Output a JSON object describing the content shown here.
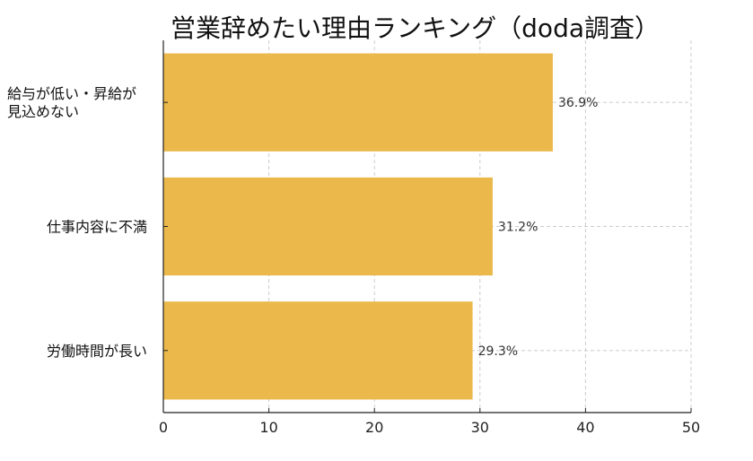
{
  "title": "営業辞めたい理由ランキング（doda調査）",
  "chart_data": {
    "type": "bar",
    "orientation": "horizontal",
    "title": "営業辞めたい理由ランキング（doda調査）",
    "xlabel": "",
    "ylabel": "",
    "categories": [
      [
        "給与が低い・昇給が",
        "見込めない"
      ],
      [
        "仕事内容に不満"
      ],
      [
        "労働時間が長い"
      ]
    ],
    "values": [
      36.9,
      31.2,
      29.3
    ],
    "data_labels": [
      "36.9%",
      "31.2%",
      "29.3%"
    ],
    "xlim": [
      0,
      50
    ],
    "xticks": [
      0,
      10,
      20,
      30,
      40,
      50
    ],
    "xtick_labels": [
      "0",
      "10",
      "20",
      "30",
      "40",
      "50"
    ],
    "grid": true,
    "bar_color": "#EBB94B",
    "grid_color": "#CCCCCC"
  }
}
